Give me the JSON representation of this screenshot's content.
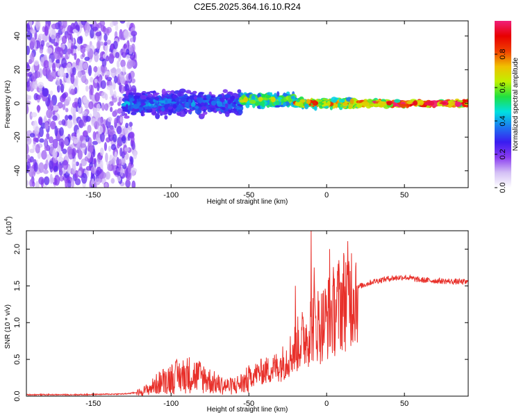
{
  "title": "C2E5.2025.364.16.10.R24",
  "chart_data": [
    {
      "type": "heatmap",
      "name": "spectrogram",
      "xlabel": "Height of straight line (km)",
      "ylabel": "Frequency (Hz)",
      "xlim": [
        -193,
        91
      ],
      "ylim": [
        -50,
        49
      ],
      "xticks": [
        -150,
        -100,
        -50,
        0,
        50
      ],
      "xtick_labels": [
        "-150",
        "-100",
        "-50",
        "0",
        "50"
      ],
      "yticks": [
        -40,
        -20,
        0,
        20,
        40
      ],
      "ytick_labels": [
        "-40",
        "-20",
        "0",
        "20",
        "40"
      ],
      "colorbar": {
        "label": "Normalized spectral amplitude",
        "range": [
          0,
          1
        ],
        "ticks": [
          0,
          0.2,
          0.4,
          0.6,
          0.8
        ],
        "tick_labels": [
          "0.0",
          "0.2",
          "0.4",
          "0.6",
          "0.8"
        ],
        "colors": [
          "#ffffff",
          "#d4bff5",
          "#8a3cf0",
          "#3a1cf0",
          "#1c78f0",
          "#00e0e0",
          "#20e040",
          "#c0f000",
          "#f0c000",
          "#f04000",
          "#e80000",
          "#f0207a"
        ]
      },
      "regions": [
        {
          "x_from": -193,
          "x_to": -123,
          "freq_center": 0,
          "freq_halfwidth": 49,
          "amplitude": 0.15,
          "description_level": "noise"
        },
        {
          "x_from": -130,
          "x_to": -55,
          "freq_center": 0,
          "freq_halfwidth": 9,
          "amplitude": 0.35
        },
        {
          "x_from": -55,
          "x_to": -20,
          "freq_center": 2,
          "freq_halfwidth": 5,
          "amplitude": 0.6
        },
        {
          "x_from": -20,
          "x_to": 20,
          "freq_center": 0,
          "freq_halfwidth": 3,
          "amplitude": 0.75
        },
        {
          "x_from": 20,
          "x_to": 91,
          "freq_center": 0,
          "freq_halfwidth": 2,
          "amplitude": 0.95
        }
      ]
    },
    {
      "type": "line",
      "name": "snr",
      "xlabel": "Height of straight line (km)",
      "ylabel": "SNR (10 * v/v)",
      "scale_label": "(x10",
      "scale_exponent": "4",
      "xlim": [
        -193,
        91
      ],
      "ylim": [
        0,
        2.25
      ],
      "xticks": [
        -150,
        -100,
        -50,
        0,
        50
      ],
      "xtick_labels": [
        "-150",
        "-100",
        "-50",
        "0",
        "50"
      ],
      "yticks": [
        0,
        0.5,
        1.0,
        1.5,
        2.0
      ],
      "ytick_labels": [
        "0.0",
        "0.5",
        "1.0",
        "1.5",
        "2.0"
      ],
      "color": "#e8302a",
      "envelope": {
        "x": [
          -193,
          -160,
          -130,
          -122,
          -115,
          -108,
          -100,
          -95,
          -88,
          -82,
          -78,
          -74,
          -70,
          -66,
          -62,
          -58,
          -54,
          -50,
          -46,
          -42,
          -38,
          -34,
          -30,
          -26,
          -22,
          -18,
          -14,
          -12,
          -10,
          -8,
          -6,
          -4,
          -2,
          0,
          2,
          4,
          6,
          8,
          10,
          14,
          18,
          22,
          26,
          30,
          35,
          40,
          45,
          50,
          55,
          60,
          70,
          80,
          91
        ],
        "y": [
          0.02,
          0.02,
          0.03,
          0.05,
          0.1,
          0.2,
          0.28,
          0.3,
          0.33,
          0.3,
          0.27,
          0.22,
          0.18,
          0.16,
          0.15,
          0.17,
          0.2,
          0.25,
          0.3,
          0.33,
          0.35,
          0.38,
          0.42,
          0.5,
          0.6,
          0.72,
          0.8,
          0.85,
          0.95,
          0.98,
          1.0,
          0.95,
          1.0,
          1.05,
          1.1,
          1.15,
          1.2,
          1.25,
          1.3,
          1.38,
          1.45,
          1.5,
          1.53,
          1.56,
          1.58,
          1.6,
          1.61,
          1.62,
          1.6,
          1.58,
          1.57,
          1.56,
          1.55
        ]
      },
      "spikes": [
        {
          "x": -10,
          "y": 2.25
        },
        {
          "x": 2,
          "y": 2.0
        },
        {
          "x": -20,
          "y": 1.5
        },
        {
          "x": -8,
          "y": 1.75
        },
        {
          "x": 4,
          "y": 1.5
        }
      ]
    }
  ]
}
